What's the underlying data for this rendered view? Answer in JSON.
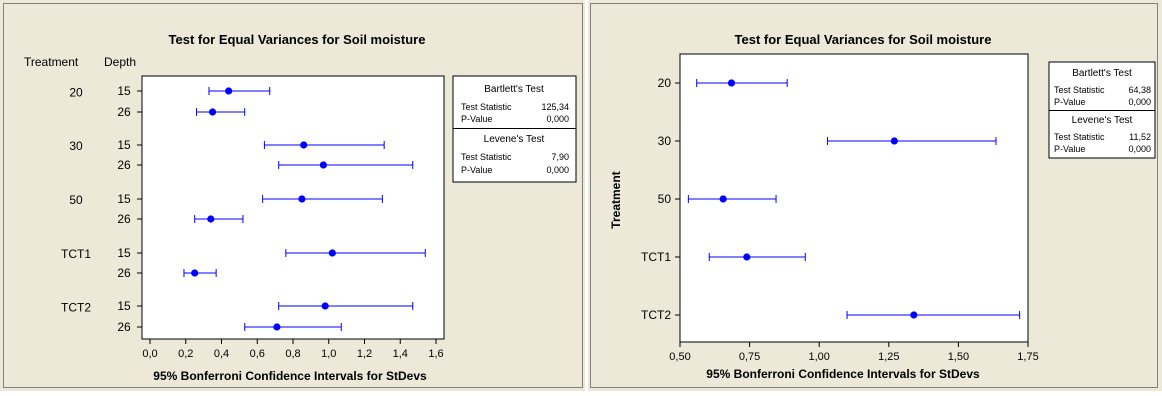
{
  "chart_data": [
    {
      "type": "interval",
      "title": "Test for Equal Variances for Soil moisture",
      "xlabel": "95% Bonferroni Confidence Intervals for StDevs",
      "group_headers": [
        "Treatment",
        "Depth"
      ],
      "xlim": [
        0.0,
        1.6
      ],
      "xticks": [
        "0,0",
        "0,2",
        "0,4",
        "0,6",
        "0,8",
        "1,0",
        "1,2",
        "1,4",
        "1,6"
      ],
      "xtick_values": [
        0.0,
        0.2,
        0.4,
        0.6,
        0.8,
        1.0,
        1.2,
        1.4,
        1.6
      ],
      "groups": [
        {
          "treatment": "20",
          "rows": [
            {
              "depth": "15",
              "low": 0.33,
              "est": 0.44,
              "high": 0.67
            },
            {
              "depth": "26",
              "low": 0.26,
              "est": 0.35,
              "high": 0.53
            }
          ]
        },
        {
          "treatment": "30",
          "rows": [
            {
              "depth": "15",
              "low": 0.64,
              "est": 0.86,
              "high": 1.31
            },
            {
              "depth": "26",
              "low": 0.72,
              "est": 0.97,
              "high": 1.47
            }
          ]
        },
        {
          "treatment": "50",
          "rows": [
            {
              "depth": "15",
              "low": 0.63,
              "est": 0.85,
              "high": 1.3
            },
            {
              "depth": "26",
              "low": 0.25,
              "est": 0.34,
              "high": 0.52
            }
          ]
        },
        {
          "treatment": "TCT1",
          "rows": [
            {
              "depth": "15",
              "low": 0.76,
              "est": 1.02,
              "high": 1.54
            },
            {
              "depth": "26",
              "low": 0.19,
              "est": 0.25,
              "high": 0.37
            }
          ]
        },
        {
          "treatment": "TCT2",
          "rows": [
            {
              "depth": "15",
              "low": 0.72,
              "est": 0.98,
              "high": 1.47
            },
            {
              "depth": "26",
              "low": 0.53,
              "est": 0.71,
              "high": 1.07
            }
          ]
        }
      ],
      "tests": [
        {
          "name": "Bartlett's Test",
          "statistic_label": "Test Statistic",
          "statistic": "125,34",
          "p_label": "P-Value",
          "p": "0,000"
        },
        {
          "name": "Levene's Test",
          "statistic_label": "Test Statistic",
          "statistic": "7,90",
          "p_label": "P-Value",
          "p": "0,000"
        }
      ]
    },
    {
      "type": "interval",
      "title": "Test for Equal Variances for Soil moisture",
      "xlabel": "95% Bonferroni Confidence Intervals for StDevs",
      "ylabel": "Treatment",
      "xlim": [
        0.5,
        1.75
      ],
      "xticks": [
        "0,50",
        "0,75",
        "1,00",
        "1,25",
        "1,50",
        "1,75"
      ],
      "xtick_values": [
        0.5,
        0.75,
        1.0,
        1.25,
        1.5,
        1.75
      ],
      "categories": [
        "20",
        "30",
        "50",
        "TCT1",
        "TCT2"
      ],
      "rows": [
        {
          "label": "20",
          "low": 0.56,
          "est": 0.685,
          "high": 0.885
        },
        {
          "label": "30",
          "low": 1.03,
          "est": 1.27,
          "high": 1.635
        },
        {
          "label": "50",
          "low": 0.53,
          "est": 0.655,
          "high": 0.845
        },
        {
          "label": "TCT1",
          "low": 0.605,
          "est": 0.74,
          "high": 0.95
        },
        {
          "label": "TCT2",
          "low": 1.1,
          "est": 1.34,
          "high": 1.72
        }
      ],
      "tests": [
        {
          "name": "Bartlett's Test",
          "statistic_label": "Test Statistic",
          "statistic": "64,38",
          "p_label": "P-Value",
          "p": "0,000"
        },
        {
          "name": "Levene's Test",
          "statistic_label": "Test Statistic",
          "statistic": "11,52",
          "p_label": "P-Value",
          "p": "0,000"
        }
      ]
    }
  ],
  "colors": {
    "panel_bg": "#ece9d8",
    "plot_bg": "#ffffff",
    "interval": "#0000ff",
    "point": "#0000ff",
    "axis": "#000000",
    "frame": "#808080"
  }
}
